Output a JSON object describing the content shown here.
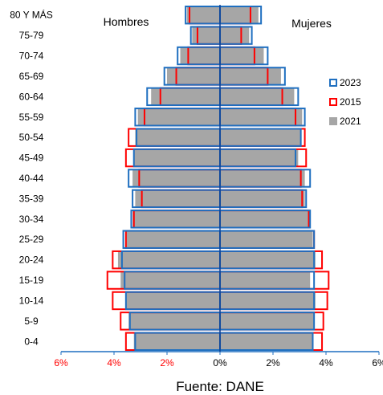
{
  "chart_data": {
    "type": "bar",
    "orientation": "horizontal-population-pyramid",
    "unit": "%",
    "categories": [
      "0-4",
      "5-9",
      "10-14",
      "15-19",
      "20-24",
      "25-29",
      "30-34",
      "35-39",
      "40-44",
      "45-49",
      "50-54",
      "55-59",
      "60-64",
      "65-69",
      "70-74",
      "75-79",
      "80 Y MÁS"
    ],
    "left_label": "Hombres",
    "right_label": "Mujeres",
    "xlim": [
      -6,
      6
    ],
    "xticks": [
      {
        "value": -6,
        "label": "6%",
        "color": "#ff0000"
      },
      {
        "value": -4,
        "label": "4%",
        "color": "#ff0000"
      },
      {
        "value": -2,
        "label": "2%",
        "color": "#ff0000"
      },
      {
        "value": 0,
        "label": "0%",
        "color": "#000000"
      },
      {
        "value": 2,
        "label": "2%",
        "color": "#000000"
      },
      {
        "value": 4,
        "label": "4%",
        "color": "#000000"
      },
      {
        "value": 6,
        "label": "6%",
        "color": "#000000"
      }
    ],
    "series": [
      {
        "name": "2023",
        "style": "outline",
        "color": "#1f6fc0",
        "hombres": [
          3.2,
          3.4,
          3.55,
          3.6,
          3.7,
          3.65,
          3.35,
          3.3,
          3.45,
          3.25,
          3.15,
          3.2,
          2.75,
          2.1,
          1.6,
          1.1,
          1.3
        ],
        "mujeres": [
          3.5,
          3.55,
          3.55,
          3.55,
          3.55,
          3.55,
          3.4,
          3.25,
          3.4,
          2.85,
          3.05,
          3.2,
          2.95,
          2.45,
          1.8,
          1.2,
          1.55
        ]
      },
      {
        "name": "2015",
        "style": "outline",
        "color": "#ff0000",
        "hombres": [
          3.55,
          3.75,
          4.05,
          4.25,
          4.05,
          3.55,
          3.25,
          2.95,
          3.05,
          3.55,
          3.45,
          2.85,
          2.25,
          1.65,
          1.2,
          0.85,
          1.15
        ],
        "mujeres": [
          3.85,
          3.9,
          4.05,
          4.1,
          3.85,
          3.55,
          3.35,
          3.1,
          3.05,
          3.25,
          3.2,
          2.85,
          2.35,
          1.8,
          1.3,
          0.8,
          1.15
        ]
      },
      {
        "name": "2021",
        "style": "fill",
        "color": "#a6a6a6",
        "hombres": [
          3.25,
          3.45,
          3.55,
          3.75,
          3.85,
          3.55,
          3.3,
          3.2,
          3.3,
          3.25,
          3.2,
          3.1,
          2.6,
          2.0,
          1.5,
          1.05,
          1.25
        ],
        "mujeres": [
          3.5,
          3.55,
          3.6,
          3.4,
          3.6,
          3.5,
          3.35,
          3.2,
          3.2,
          2.95,
          3.05,
          3.1,
          2.8,
          2.3,
          1.65,
          1.1,
          1.45
        ]
      }
    ],
    "legend": {
      "position": "right",
      "order": [
        "2023",
        "2015",
        "2021"
      ]
    },
    "grid": false
  },
  "source": "Fuente: DANE"
}
